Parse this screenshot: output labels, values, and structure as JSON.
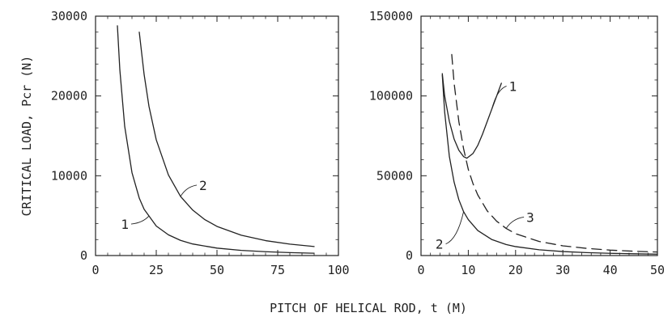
{
  "chart_data": [
    {
      "type": "line",
      "xlabel": "PITCH OF HELICAL ROD, t (M)",
      "ylabel": "CRITICAL LOAD, Pcr (N)",
      "xlim": [
        0,
        100
      ],
      "ylim": [
        0,
        30000
      ],
      "x_ticks": [
        0,
        25,
        50,
        75,
        100
      ],
      "y_ticks": [
        0,
        10000,
        20000,
        30000
      ],
      "x_tick_labels": [
        "0",
        "25",
        "50",
        "75",
        "100"
      ],
      "y_tick_labels": [
        "0",
        "10000",
        "20000",
        "30000"
      ],
      "grid": false,
      "series": [
        {
          "name": "1",
          "style": "solid",
          "x": [
            9,
            10,
            12,
            15,
            18,
            20,
            25,
            30,
            35,
            40,
            50,
            60,
            70,
            80,
            90
          ],
          "y": [
            28800,
            23300,
            16200,
            10400,
            7200,
            5800,
            3700,
            2600,
            1900,
            1450,
            930,
            650,
            480,
            365,
            290
          ]
        },
        {
          "name": "2",
          "style": "solid",
          "x": [
            18,
            20,
            22,
            25,
            30,
            35,
            40,
            45,
            50,
            60,
            70,
            80,
            90
          ],
          "y": [
            28000,
            22700,
            18700,
            14500,
            10100,
            7400,
            5700,
            4500,
            3650,
            2550,
            1870,
            1430,
            1130
          ]
        }
      ],
      "annotations": [
        {
          "text": "1",
          "series": "1"
        },
        {
          "text": "2",
          "series": "2"
        }
      ]
    },
    {
      "type": "line",
      "xlabel": "PITCH OF HELICAL ROD, t (M)",
      "ylabel": "",
      "xlim": [
        0,
        50
      ],
      "ylim": [
        0,
        150000
      ],
      "x_ticks": [
        0,
        10,
        20,
        30,
        40,
        50
      ],
      "y_ticks": [
        0,
        50000,
        100000,
        150000
      ],
      "x_tick_labels": [
        "0",
        "10",
        "20",
        "30",
        "40",
        "50"
      ],
      "y_tick_labels": [
        "0",
        "50000",
        "100000",
        "150000"
      ],
      "grid": false,
      "series": [
        {
          "name": "1",
          "style": "solid",
          "x": [
            4.5,
            5,
            6,
            7,
            8,
            9,
            9.7,
            11,
            12,
            13,
            14,
            15,
            16,
            17
          ],
          "y": [
            114000,
            100000,
            84000,
            73000,
            66000,
            62000,
            61000,
            64000,
            69000,
            76000,
            84000,
            92000,
            100000,
            108000
          ]
        },
        {
          "name": "2",
          "style": "solid",
          "x": [
            4.5,
            5,
            6,
            7,
            8,
            9,
            10,
            12,
            15,
            18,
            20,
            25,
            30,
            35,
            40,
            45,
            50
          ],
          "y": [
            113000,
            90000,
            62000,
            46000,
            35000,
            27500,
            22500,
            15700,
            10000,
            6900,
            5600,
            3600,
            2500,
            1850,
            1400,
            1100,
            900
          ]
        },
        {
          "name": "3",
          "style": "dashed",
          "x": [
            6.5,
            7,
            8,
            9,
            10,
            11,
            12,
            14,
            16,
            18,
            20,
            25,
            30,
            35,
            40,
            45,
            50
          ],
          "y": [
            126000,
            108000,
            84000,
            67000,
            54000,
            45000,
            38000,
            28000,
            21500,
            17000,
            13700,
            8800,
            6100,
            4500,
            3400,
            2700,
            2200
          ]
        }
      ],
      "annotations": [
        {
          "text": "1",
          "series": "1"
        },
        {
          "text": "2",
          "series": "2"
        },
        {
          "text": "3",
          "series": "3"
        }
      ]
    }
  ]
}
